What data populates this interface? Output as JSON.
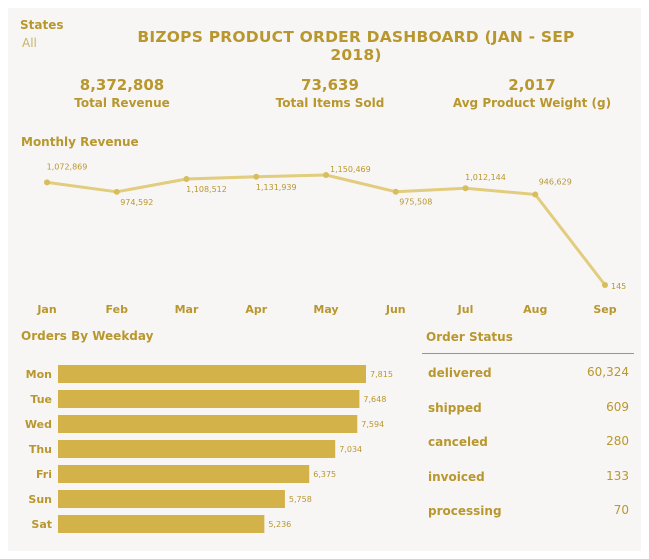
{
  "filter": {
    "title": "States",
    "value": "All"
  },
  "title": "BIZOPS PRODUCT ORDER DASHBOARD (JAN - SEP 2018)",
  "kpis": [
    {
      "value": "8,372,808",
      "label": "Total Revenue"
    },
    {
      "value": "73,639",
      "label": "Total Items Sold"
    },
    {
      "value": "2,017",
      "label": "Avg Product Weight (g)"
    }
  ],
  "colors": {
    "accent": "#b8972e",
    "line": "#e2cc7e",
    "bar": "#d4b24a"
  },
  "chart_data": [
    {
      "type": "line",
      "title": "Monthly Revenue",
      "categories": [
        "Jan",
        "Feb",
        "Mar",
        "Apr",
        "May",
        "Jun",
        "Jul",
        "Aug",
        "Sep"
      ],
      "values": [
        1072869,
        974592,
        1108512,
        1131939,
        1150469,
        975508,
        1012144,
        946629,
        145
      ],
      "labels": [
        "1,072,869",
        "974,592",
        "1,108,512",
        "1,131,939",
        "1,150,469",
        "975,508",
        "1,012,144",
        "946,629",
        "145"
      ],
      "ylim": [
        0,
        1150469
      ],
      "grid": false
    },
    {
      "type": "bar",
      "orientation": "horizontal",
      "title": "Orders By Weekday",
      "categories": [
        "Mon",
        "Tue",
        "Wed",
        "Thu",
        "Fri",
        "Sun",
        "Sat"
      ],
      "values": [
        7815,
        7648,
        7594,
        7034,
        6375,
        5758,
        5236
      ],
      "labels": [
        "7,815",
        "7,648",
        "7,594",
        "7,034",
        "6,375",
        "5,758",
        "5,236"
      ],
      "grid": false
    },
    {
      "type": "table",
      "title": "Order Status",
      "rows": [
        {
          "label": "delivered",
          "value": "60,324"
        },
        {
          "label": "shipped",
          "value": "609"
        },
        {
          "label": "canceled",
          "value": "280"
        },
        {
          "label": "invoiced",
          "value": "133"
        },
        {
          "label": "processing",
          "value": "70"
        }
      ]
    }
  ]
}
